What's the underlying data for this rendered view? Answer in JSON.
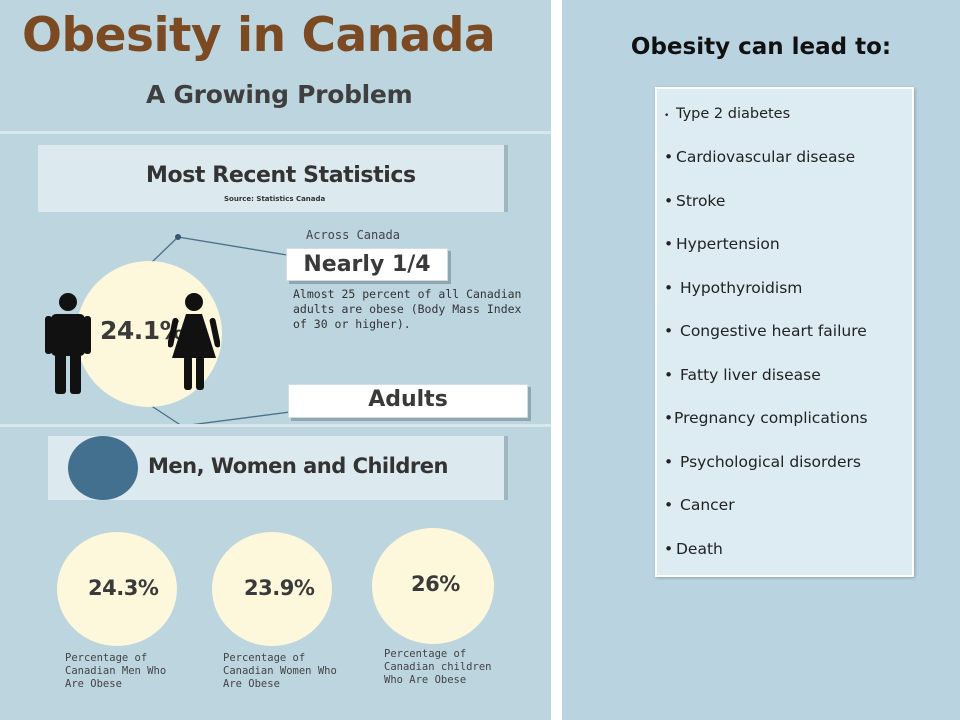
{
  "infographic": {
    "title": "Obesity in Canada",
    "subtitle": "A Growing Problem",
    "stats_banner": {
      "heading": "Most Recent Statistics",
      "source": "Source: Statistics Canada"
    },
    "across_label": "Across Canada",
    "nearly_label": "Nearly 1/4",
    "description": "Almost 25 percent of all Canadian adults are obese (Body Mass Index of 30 or higher).",
    "adults_label": "Adults",
    "overall_percent": "24.1%",
    "section_heading": "Men, Women and Children",
    "stats": [
      {
        "percent": "24.3%",
        "caption": "Percentage of Canadian Men Who Are Obese"
      },
      {
        "percent": "23.9%",
        "caption": "Percentage of Canadian Women Who Are Obese"
      },
      {
        "percent": "26%",
        "caption": "Percentage of Canadian children Who Are Obese"
      }
    ]
  },
  "consequences": {
    "title": "Obesity can lead to:",
    "items": [
      "Type 2 diabetes",
      "Cardiovascular disease",
      "Stroke",
      "Hypertension",
      "Hypothyroidism",
      "Congestive heart failure",
      "Fatty liver disease",
      "Pregnancy complications",
      "Psychological disorders",
      "Cancer",
      "Death"
    ]
  },
  "colors": {
    "left_background": "#bcd5df",
    "right_background": "#b9d4e0",
    "title_brown": "#7c4a22",
    "circle_cream": "#fdf7dc",
    "accent_blue": "#44708f"
  }
}
